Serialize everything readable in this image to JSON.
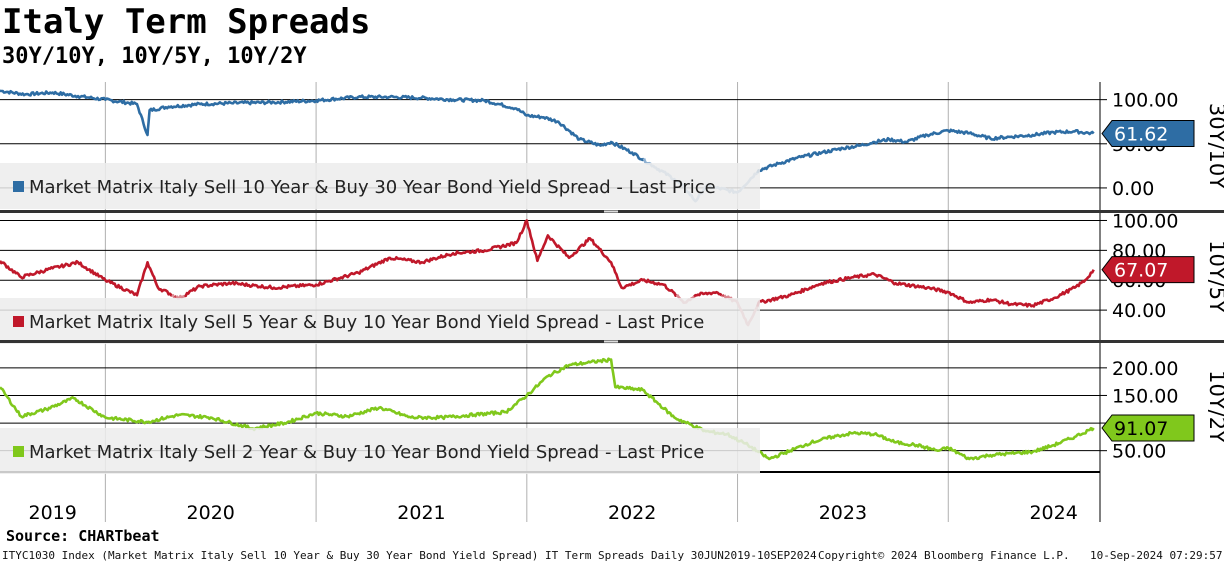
{
  "title": "Italy Term Spreads",
  "subtitle": "30Y/10Y, 10Y/5Y, 10Y/2Y",
  "source": "Source: CHARTbeat",
  "footer": {
    "index_desc": "ITYC1030 Index (Market Matrix Italy Sell 10 Year & Buy 30 Year Bond Yield Spread) IT Term Spreads  Daily 30JUN2019-10SEP2024",
    "copyright": "Copyright© 2024 Bloomberg Finance L.P.",
    "timestamp": "10-Sep-2024 07:29:57"
  },
  "colors": {
    "blue": "#2e6da4",
    "blue_light": "#8fb1d2",
    "red": "#c0182a",
    "red_light": "#dc8a92",
    "green": "#80c81c",
    "legend_bg": "#ececec",
    "grid": "#000000"
  },
  "chart_data": [
    {
      "type": "line",
      "name": "30Y/10Y",
      "axis_title": "30Y/10Y",
      "legend": "Market Matrix Italy Sell 10 Year & Buy 30 Year Bond Yield Spread - Last Price",
      "legend_placement": "bottom-left",
      "last_price_label": "61.62",
      "last_value": 61.62,
      "ylim": [
        -25,
        120
      ],
      "y_ticks": [
        0,
        50,
        100
      ],
      "y_tick_labels": [
        "0.00",
        "50.00",
        "100.00"
      ],
      "color": "#2e6da4",
      "highlight": "#8fb1d2",
      "x": [
        2019.5,
        2019.62,
        2019.75,
        2019.87,
        2020.0,
        2020.15,
        2020.2,
        2020.21,
        2020.3,
        2020.45,
        2020.6,
        2020.8,
        2021.0,
        2021.2,
        2021.35,
        2021.5,
        2021.65,
        2021.8,
        2021.95,
        2022.0,
        2022.08,
        2022.15,
        2022.25,
        2022.35,
        2022.4,
        2022.5,
        2022.6,
        2022.7,
        2022.75,
        2022.8,
        2022.85,
        2022.9,
        2023.0,
        2023.1,
        2023.2,
        2023.3,
        2023.4,
        2023.5,
        2023.58,
        2023.65,
        2023.72,
        2023.8,
        2023.9,
        2024.0,
        2024.1,
        2024.2,
        2024.3,
        2024.4,
        2024.5,
        2024.6,
        2024.69
      ],
      "y": [
        110,
        106,
        108,
        104,
        100,
        95,
        60,
        88,
        92,
        95,
        96,
        97,
        99,
        103,
        103,
        102,
        100,
        99,
        90,
        82,
        80,
        75,
        55,
        48,
        52,
        40,
        25,
        10,
        0,
        -15,
        2,
        0,
        -5,
        20,
        28,
        35,
        40,
        45,
        48,
        52,
        55,
        52,
        60,
        65,
        62,
        56,
        58,
        60,
        63,
        64,
        61.62
      ]
    },
    {
      "type": "line",
      "name": "10Y/5Y",
      "axis_title": "10Y/5Y",
      "legend": "Market Matrix Italy Sell 5 Year & Buy 10 Year Bond Yield Spread - Last Price",
      "legend_placement": "bottom-left",
      "last_price_label": "67.07",
      "last_value": 67.07,
      "ylim": [
        20,
        105
      ],
      "y_ticks": [
        40,
        60,
        80,
        100
      ],
      "y_tick_labels": [
        "40.00",
        "60.00",
        "80.00",
        "100.00"
      ],
      "color": "#c0182a",
      "highlight": "#dc8a92",
      "x": [
        2019.5,
        2019.6,
        2019.75,
        2019.87,
        2020.0,
        2020.15,
        2020.2,
        2020.25,
        2020.35,
        2020.45,
        2020.6,
        2020.8,
        2021.0,
        2021.2,
        2021.35,
        2021.5,
        2021.65,
        2021.8,
        2021.95,
        2022.0,
        2022.05,
        2022.1,
        2022.2,
        2022.3,
        2022.4,
        2022.45,
        2022.55,
        2022.65,
        2022.75,
        2022.8,
        2022.9,
        2023.0,
        2023.05,
        2023.1,
        2023.25,
        2023.4,
        2023.55,
        2023.65,
        2023.75,
        2023.9,
        2024.0,
        2024.1,
        2024.2,
        2024.3,
        2024.4,
        2024.5,
        2024.6,
        2024.65,
        2024.69
      ],
      "y": [
        73,
        62,
        68,
        72,
        60,
        50,
        72,
        55,
        48,
        56,
        58,
        55,
        57,
        65,
        75,
        72,
        78,
        80,
        85,
        100,
        73,
        90,
        75,
        88,
        72,
        55,
        60,
        57,
        45,
        50,
        52,
        45,
        30,
        45,
        50,
        58,
        62,
        64,
        58,
        55,
        52,
        45,
        47,
        44,
        43,
        48,
        55,
        60,
        67.07
      ]
    },
    {
      "type": "line",
      "name": "10Y/2Y",
      "axis_title": "10Y/2Y",
      "legend": "Market Matrix Italy Sell 2 Year & Buy 10 Year Bond Yield Spread - Last Price",
      "legend_placement": "bottom-left",
      "last_price_label": "91.07",
      "last_value": 91.07,
      "ylim": [
        15,
        245
      ],
      "y_ticks": [
        50,
        100,
        150,
        200
      ],
      "y_tick_labels": [
        "50.00",
        "100.00",
        "150.00",
        "200.00"
      ],
      "color": "#80c81c",
      "highlight": "#80c81c",
      "x": [
        2019.5,
        2019.6,
        2019.72,
        2019.85,
        2020.0,
        2020.2,
        2020.35,
        2020.5,
        2020.7,
        2020.85,
        2021.0,
        2021.15,
        2021.3,
        2021.45,
        2021.6,
        2021.75,
        2021.9,
        2022.0,
        2022.1,
        2022.2,
        2022.3,
        2022.4,
        2022.42,
        2022.55,
        2022.7,
        2022.85,
        2022.95,
        2023.05,
        2023.15,
        2023.25,
        2023.35,
        2023.45,
        2023.55,
        2023.65,
        2023.75,
        2023.85,
        2023.95,
        2024.0,
        2024.1,
        2024.2,
        2024.3,
        2024.4,
        2024.5,
        2024.6,
        2024.69
      ],
      "y": [
        165,
        112,
        125,
        145,
        110,
        102,
        115,
        110,
        90,
        100,
        118,
        112,
        128,
        110,
        110,
        115,
        120,
        150,
        185,
        205,
        210,
        215,
        165,
        160,
        110,
        85,
        80,
        60,
        35,
        50,
        65,
        75,
        82,
        80,
        65,
        60,
        50,
        55,
        35,
        42,
        45,
        48,
        60,
        75,
        91.07
      ]
    }
  ],
  "x_axis": {
    "labels": [
      "2019",
      "2020",
      "2021",
      "2022",
      "2023",
      "2024"
    ],
    "label_positions": [
      2019.75,
      2020.5,
      2021.5,
      2022.5,
      2023.5,
      2024.5
    ],
    "year_boundaries": [
      2020,
      2021,
      2022,
      2023,
      2024
    ],
    "xlim": [
      2019.5,
      2024.72
    ]
  }
}
